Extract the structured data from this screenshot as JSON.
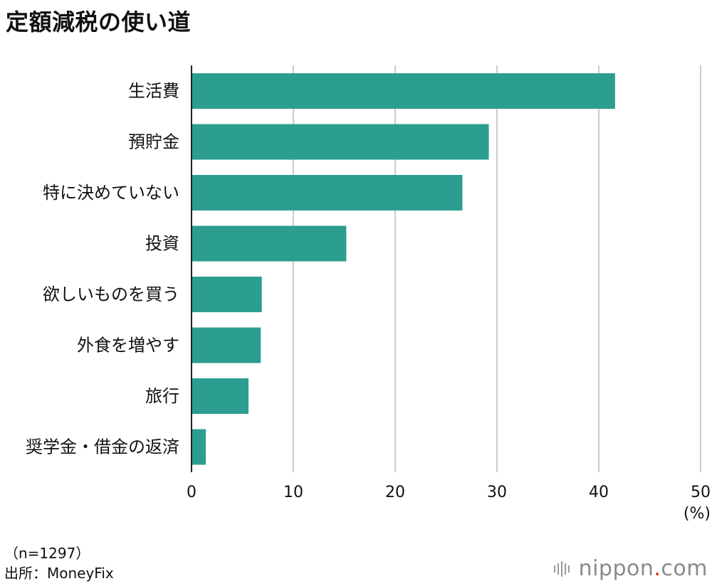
{
  "title": "定額減税の使い道",
  "chart_data": {
    "type": "bar",
    "orientation": "horizontal",
    "categories": [
      "生活費",
      "預貯金",
      "特に決めていない",
      "投資",
      "欲しいものを買う",
      "外食を増やす",
      "旅行",
      "奨学金・借金の返済"
    ],
    "values": [
      41.6,
      29.2,
      26.6,
      15.2,
      6.9,
      6.8,
      5.6,
      1.4
    ],
    "xlim": [
      0,
      50
    ],
    "xticks": [
      0,
      10,
      20,
      30,
      40,
      50
    ],
    "xticklabels": [
      "0",
      "10",
      "20",
      "30",
      "40",
      "50"
    ],
    "unit_label": "(%)",
    "bar_color": "#2b9e8f",
    "grid": true
  },
  "notes": {
    "sample": "（n=1297）",
    "source": "出所：MoneyFix"
  },
  "logo": {
    "name": "nippon",
    "dot": ".",
    "suffix": "com"
  }
}
